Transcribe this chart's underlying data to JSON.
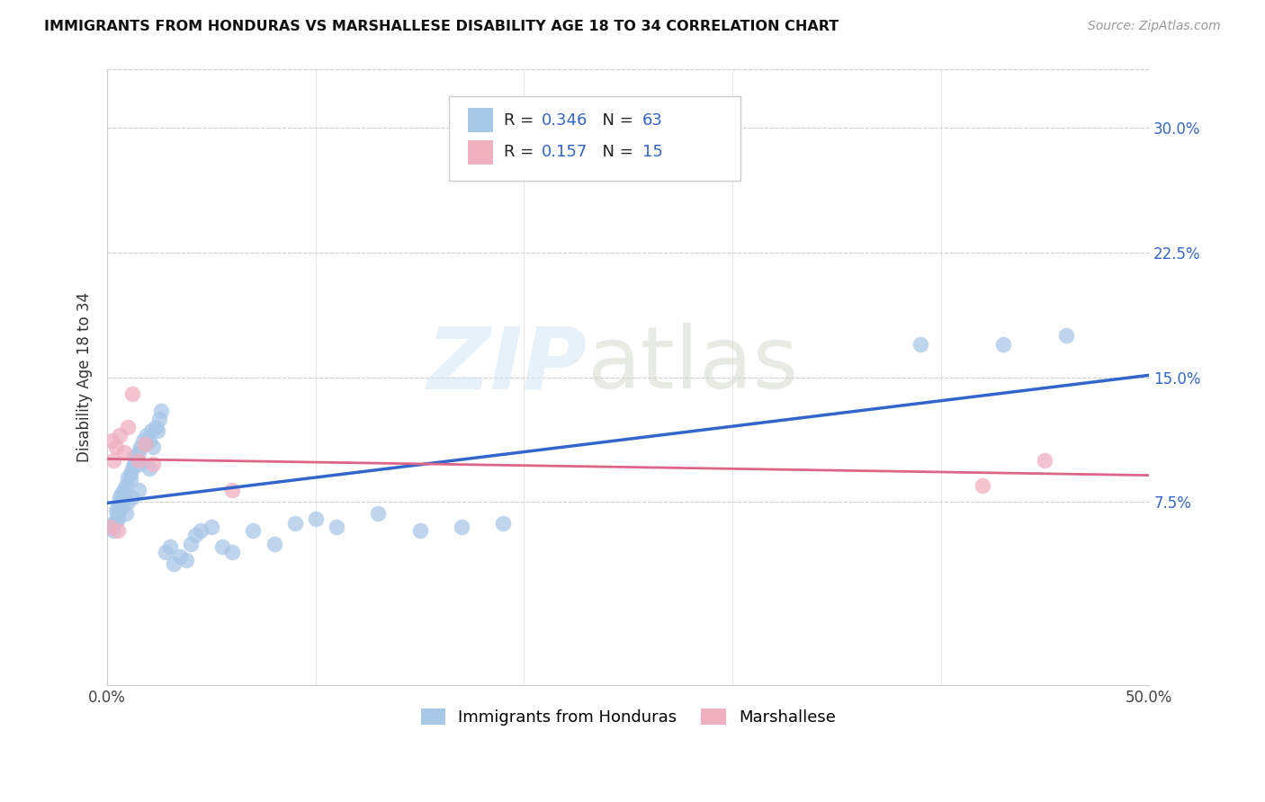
{
  "title": "IMMIGRANTS FROM HONDURAS VS MARSHALLESE DISABILITY AGE 18 TO 34 CORRELATION CHART",
  "source": "Source: ZipAtlas.com",
  "ylabel": "Disability Age 18 to 34",
  "yticks": [
    "7.5%",
    "15.0%",
    "22.5%",
    "30.0%"
  ],
  "ytick_vals": [
    0.075,
    0.15,
    0.225,
    0.3
  ],
  "xlim": [
    0.0,
    0.5
  ],
  "ylim": [
    -0.035,
    0.335
  ],
  "legend1_r": "0.346",
  "legend1_n": "63",
  "legend2_r": "0.157",
  "legend2_n": "15",
  "blue_color": "#a8c8e8",
  "pink_color": "#f0b0c0",
  "blue_line_color": "#3366cc",
  "pink_line_color": "#dd6688",
  "blue_points_x": [
    0.002,
    0.003,
    0.003,
    0.004,
    0.004,
    0.005,
    0.005,
    0.005,
    0.006,
    0.006,
    0.007,
    0.007,
    0.008,
    0.008,
    0.009,
    0.009,
    0.01,
    0.01,
    0.011,
    0.011,
    0.012,
    0.012,
    0.013,
    0.013,
    0.014,
    0.015,
    0.015,
    0.016,
    0.016,
    0.017,
    0.018,
    0.019,
    0.02,
    0.02,
    0.021,
    0.022,
    0.023,
    0.024,
    0.025,
    0.026,
    0.028,
    0.03,
    0.032,
    0.035,
    0.038,
    0.04,
    0.042,
    0.045,
    0.05,
    0.055,
    0.06,
    0.07,
    0.08,
    0.09,
    0.1,
    0.11,
    0.13,
    0.15,
    0.17,
    0.19,
    0.39,
    0.43,
    0.46
  ],
  "blue_points_y": [
    0.06,
    0.058,
    0.062,
    0.064,
    0.07,
    0.065,
    0.072,
    0.068,
    0.075,
    0.078,
    0.072,
    0.08,
    0.078,
    0.082,
    0.085,
    0.068,
    0.09,
    0.075,
    0.092,
    0.088,
    0.095,
    0.078,
    0.098,
    0.102,
    0.1,
    0.105,
    0.082,
    0.108,
    0.098,
    0.112,
    0.11,
    0.115,
    0.112,
    0.095,
    0.118,
    0.108,
    0.12,
    0.118,
    0.125,
    0.13,
    0.045,
    0.048,
    0.038,
    0.042,
    0.04,
    0.05,
    0.055,
    0.058,
    0.06,
    0.048,
    0.045,
    0.058,
    0.05,
    0.062,
    0.065,
    0.06,
    0.068,
    0.058,
    0.06,
    0.062,
    0.17,
    0.17,
    0.175
  ],
  "pink_points_x": [
    0.001,
    0.002,
    0.003,
    0.004,
    0.005,
    0.006,
    0.008,
    0.01,
    0.012,
    0.015,
    0.018,
    0.022,
    0.06,
    0.42,
    0.45
  ],
  "pink_points_y": [
    0.06,
    0.112,
    0.1,
    0.108,
    0.058,
    0.115,
    0.105,
    0.12,
    0.14,
    0.1,
    0.11,
    0.098,
    0.082,
    0.085,
    0.1
  ]
}
